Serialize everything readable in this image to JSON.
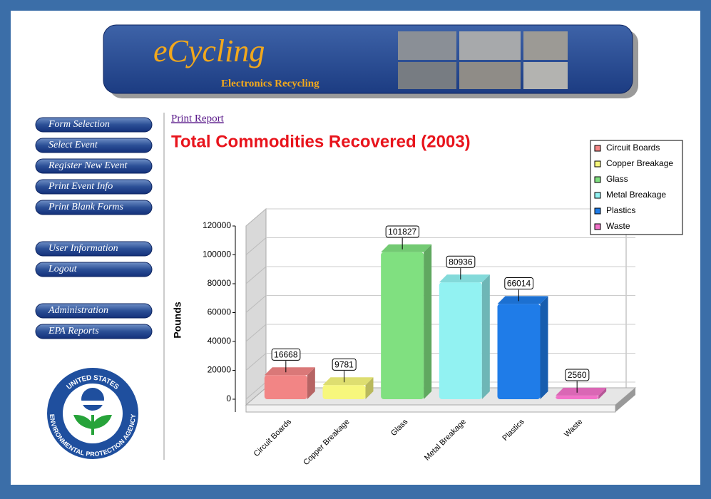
{
  "header": {
    "logo": "eCycling",
    "tagline": "Electronics Recycling"
  },
  "nav": [
    [
      "Form Selection",
      "Select Event",
      "Register New Event",
      "Print Event Info",
      "Print Blank Forms"
    ],
    [
      "User Information",
      "Logout"
    ],
    [
      "Administration",
      "EPA Reports"
    ]
  ],
  "seal": {
    "top": "UNITED STATES",
    "bottom": "ENVIRONMENTAL PROTECTION AGENCY"
  },
  "print_link": "Print Report",
  "chart_data": {
    "type": "bar",
    "title": "Total Commodities Recovered (2003)",
    "ylabel": "Pounds",
    "categories": [
      "Circuit Boards",
      "Copper Breakage",
      "Glass",
      "Metal Breakage",
      "Plastics",
      "Waste"
    ],
    "values": [
      16668,
      9781,
      101827,
      80936,
      66014,
      2560
    ],
    "colors": [
      "#f28585",
      "#f7f77c",
      "#80e080",
      "#92f2f2",
      "#1f7ce8",
      "#f272c9"
    ],
    "ylim": [
      0,
      120000
    ],
    "yticks": [
      0,
      20000,
      40000,
      60000,
      80000,
      100000,
      120000
    ],
    "grid": true,
    "legend": "upper right"
  }
}
